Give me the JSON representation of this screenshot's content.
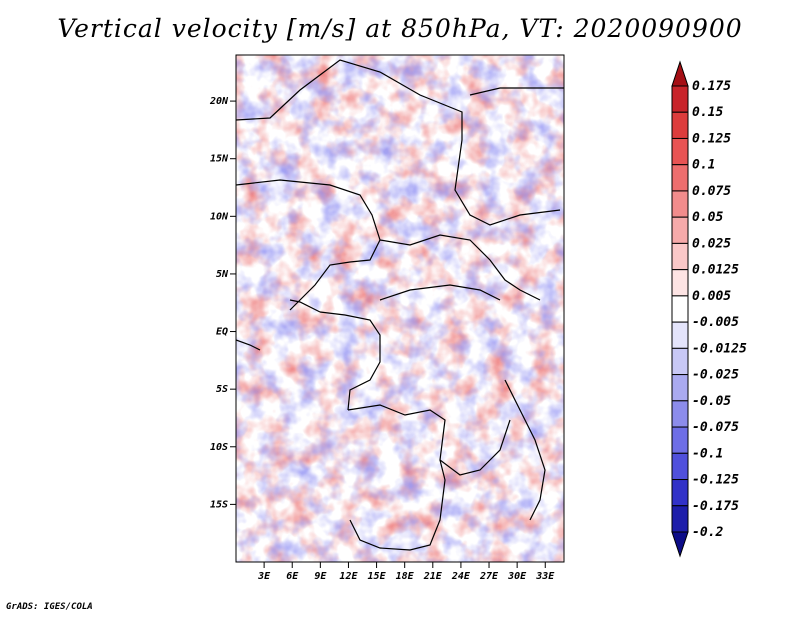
{
  "chart_data": {
    "type": "heatmap",
    "title": "Vertical velocity [m/s] at 850hPa, VT: 2020090900",
    "xlabel": "",
    "ylabel": "",
    "lon_range": [
      0,
      35
    ],
    "lat_range": [
      -20,
      24
    ],
    "x_ticks": [
      {
        "value": 3,
        "label": "3E"
      },
      {
        "value": 6,
        "label": "6E"
      },
      {
        "value": 9,
        "label": "9E"
      },
      {
        "value": 12,
        "label": "12E"
      },
      {
        "value": 15,
        "label": "15E"
      },
      {
        "value": 18,
        "label": "18E"
      },
      {
        "value": 21,
        "label": "21E"
      },
      {
        "value": 24,
        "label": "24E"
      },
      {
        "value": 27,
        "label": "27E"
      },
      {
        "value": 30,
        "label": "30E"
      },
      {
        "value": 33,
        "label": "33E"
      }
    ],
    "y_ticks": [
      {
        "value": 20,
        "label": "20N"
      },
      {
        "value": 15,
        "label": "15N"
      },
      {
        "value": 10,
        "label": "10N"
      },
      {
        "value": 5,
        "label": "5N"
      },
      {
        "value": 0,
        "label": "EQ"
      },
      {
        "value": -5,
        "label": "5S"
      },
      {
        "value": -10,
        "label": "10S"
      },
      {
        "value": -15,
        "label": "15S"
      }
    ],
    "colorbar": {
      "levels": [
        "0.175",
        "0.15",
        "0.125",
        "0.1",
        "0.075",
        "0.05",
        "0.025",
        "0.0125",
        "0.005",
        "-0.005",
        "-0.0125",
        "-0.025",
        "-0.05",
        "-0.075",
        "-0.1",
        "-0.125",
        "-0.175",
        "-0.2"
      ],
      "colors": [
        "#a50f15",
        "#c8242a",
        "#dc3c3c",
        "#e85454",
        "#ee6e6e",
        "#f28c8c",
        "#f6aaaa",
        "#fac8c8",
        "#fde4e4",
        "#ffffff",
        "#e4e4fb",
        "#c8c8f5",
        "#aaaaf0",
        "#8c8ceb",
        "#6e6ee6",
        "#5050dc",
        "#3232c8",
        "#1e1eaa",
        "#0c0c88"
      ]
    }
  },
  "footer": "GrADS: IGES/COLA"
}
